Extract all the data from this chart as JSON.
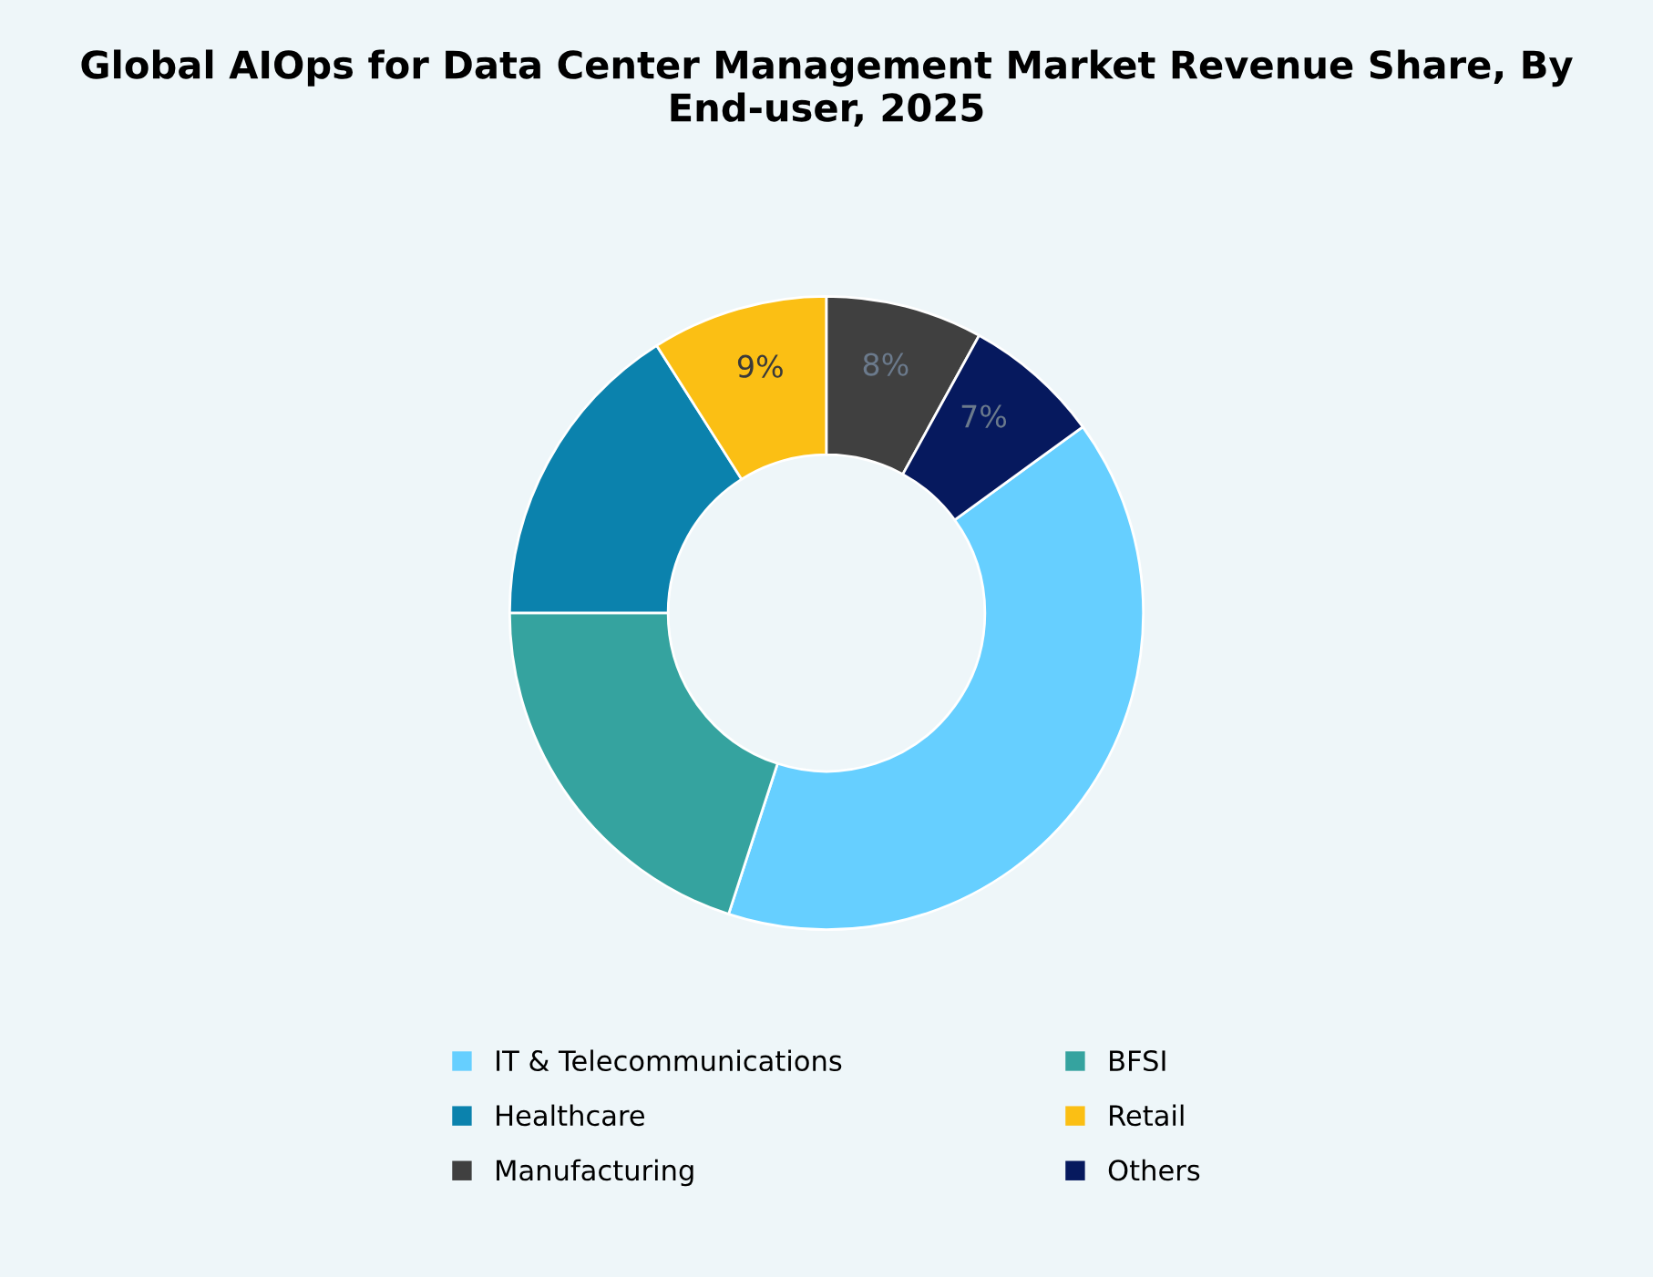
{
  "chart_data": {
    "type": "donut",
    "title": "Global AIOps for Data Center Management Market Revenue Share, By End-user, 2025",
    "categories": [
      "IT & Telecommunications",
      "BFSI",
      "Healthcare",
      "Retail",
      "Manufacturing",
      "Others"
    ],
    "values": [
      40,
      20,
      16,
      9,
      8,
      7
    ],
    "colors": [
      "#66cfff",
      "#35a39f",
      "#0b82ad",
      "#fbbf14",
      "#404040",
      "#06195e"
    ],
    "value_labels": [
      null,
      null,
      null,
      "9%",
      "8%",
      "7%"
    ],
    "legend": "bottom"
  }
}
